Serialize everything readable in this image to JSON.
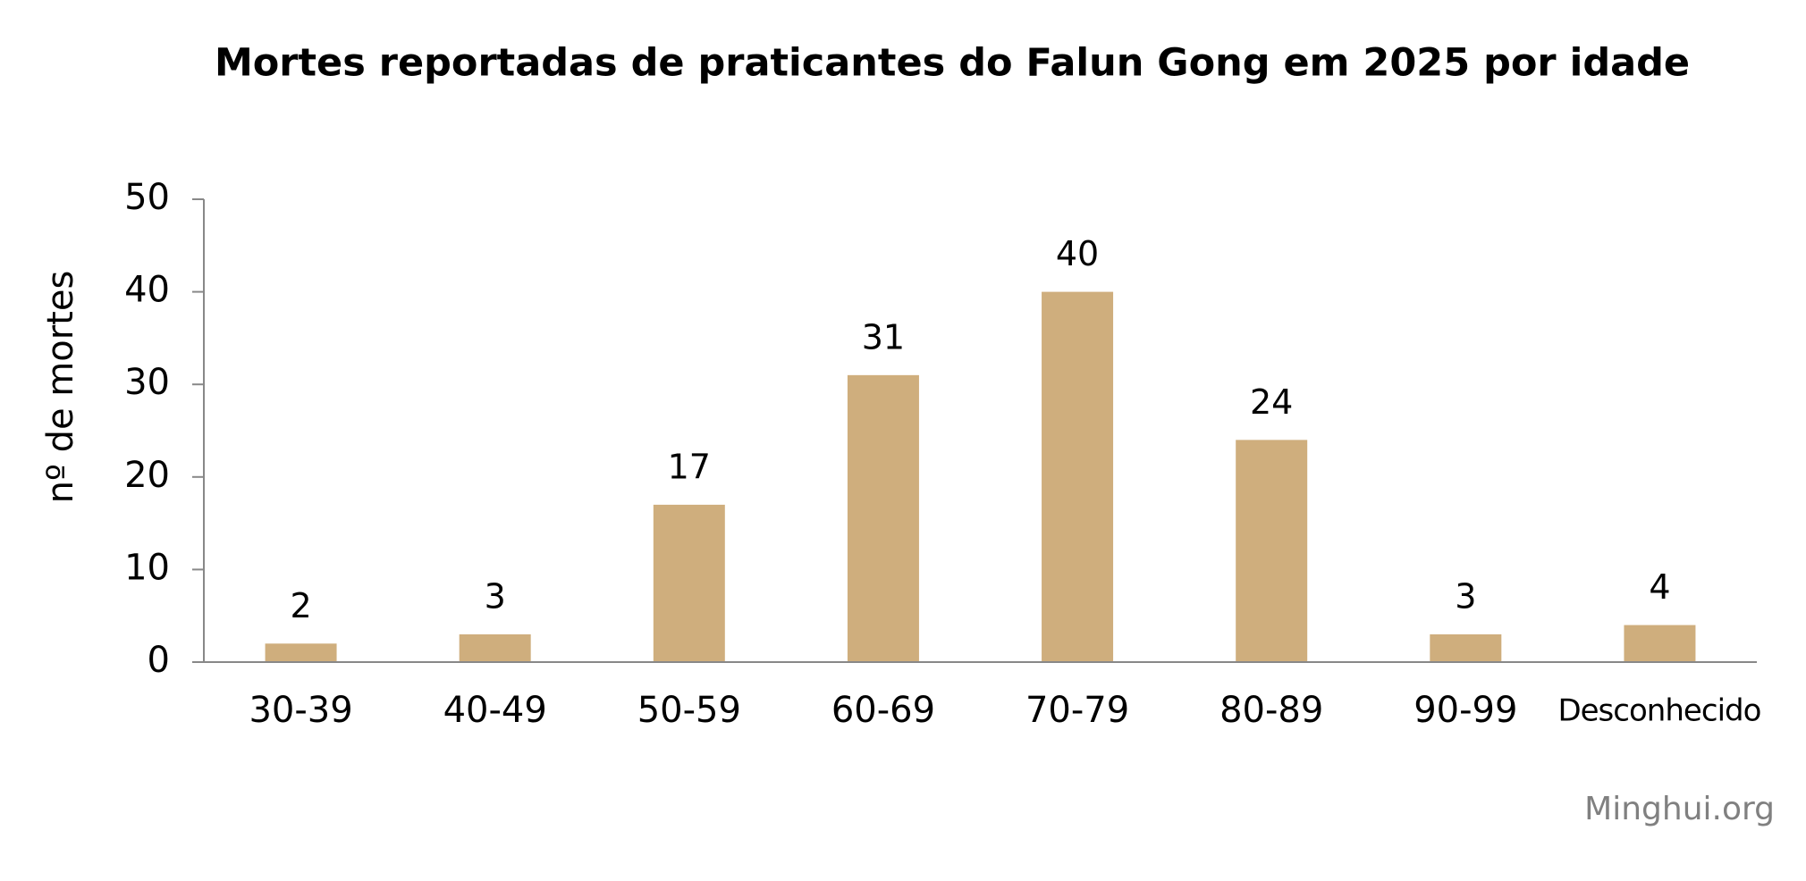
{
  "chart_data": {
    "type": "bar",
    "title": "Mortes reportadas de praticantes do Falun Gong em 2025 por idade",
    "y_label": "nº de mortes",
    "source": "Minghui.org",
    "categories": [
      "30-39",
      "40-49",
      "50-59",
      "60-69",
      "70-79",
      "80-89",
      "90-99",
      "Desconhecido"
    ],
    "values": [
      2,
      3,
      17,
      31,
      40,
      24,
      3,
      4
    ],
    "color": "#cfae7d",
    "ylim": [
      0,
      50
    ],
    "yticks": [
      0,
      10,
      20,
      30,
      40,
      50
    ],
    "grid": false
  }
}
